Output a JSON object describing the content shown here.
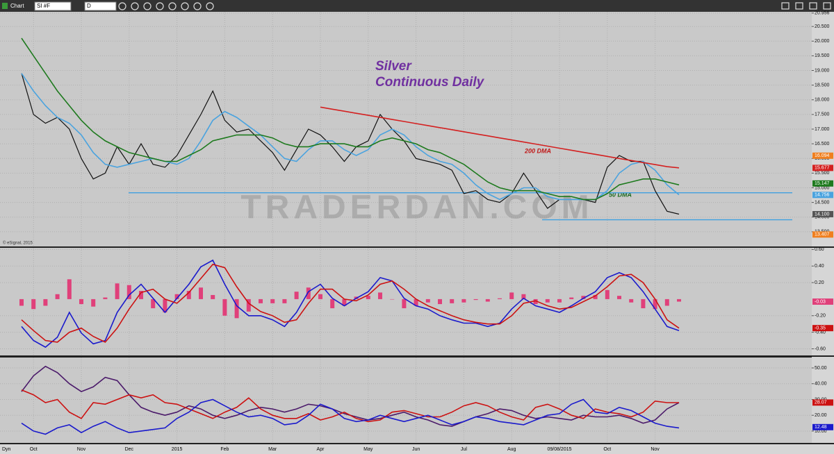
{
  "toolbar": {
    "title": "Chart",
    "symbol": "SI #F",
    "interval": "D"
  },
  "footer_label": "Dyn",
  "annotations": [
    "Silver",
    "Continuous Daily",
    "200 DMA",
    "50 DMA",
    "TRADERDAN.COM",
    "© eSignal, 2015"
  ],
  "chart_data": [
    {
      "type": "line",
      "categories": [
        null,
        "Oct",
        null,
        null,
        null,
        "Nov",
        null,
        null,
        null,
        "Dec",
        null,
        null,
        null,
        "2015",
        null,
        null,
        null,
        "Feb",
        null,
        null,
        null,
        "Mar",
        null,
        null,
        null,
        "Apr",
        null,
        null,
        null,
        "May",
        null,
        null,
        null,
        "Jun",
        null,
        null,
        null,
        "Jul",
        null,
        null,
        null,
        "Aug",
        null,
        null,
        null,
        "09/08/2015",
        null,
        null,
        null,
        "Oct",
        null,
        null,
        null,
        "Nov",
        null,
        null
      ],
      "ylim": [
        13.0,
        21.0
      ],
      "yticks": [
        {
          "value": 20.956,
          "label": "20.956"
        },
        {
          "value": 20.5,
          "label": "20.500"
        },
        {
          "value": 20,
          "label": "20.000"
        },
        {
          "value": 19.5,
          "label": "19.500"
        },
        {
          "value": 19,
          "label": "19.000"
        },
        {
          "value": 18.5,
          "label": "18.500"
        },
        {
          "value": 18,
          "label": "18.000"
        },
        {
          "value": 17.5,
          "label": "17.500"
        },
        {
          "value": 17,
          "label": "17.000"
        },
        {
          "value": 16.5,
          "label": "16.500"
        },
        {
          "value": 16,
          "label": "16.000"
        },
        {
          "value": 15.5,
          "label": "15.500"
        },
        {
          "value": 15,
          "label": "15.000"
        },
        {
          "value": 14.5,
          "label": "14.500"
        },
        {
          "value": 14,
          "label": "14.000"
        },
        {
          "value": 13.5,
          "label": "13.500"
        }
      ],
      "grid": true,
      "series": [
        {
          "color": "#111111",
          "values": [
            18.9,
            17.5,
            17.2,
            17.4,
            17.0,
            16.0,
            15.3,
            15.5,
            16.4,
            15.8,
            16.5,
            15.8,
            15.7,
            16.1,
            16.8,
            17.5,
            18.3,
            17.3,
            16.9,
            17.0,
            16.6,
            16.2,
            15.6,
            16.3,
            17.0,
            16.8,
            16.4,
            15.9,
            16.4,
            16.6,
            17.5,
            17.0,
            16.6,
            16.0,
            15.9,
            15.8,
            15.6,
            14.8,
            14.9,
            14.6,
            14.5,
            14.8,
            15.5,
            14.9,
            14.3,
            14.6,
            14.6,
            14.6,
            14.5,
            15.7,
            16.1,
            15.9,
            15.9,
            14.9,
            14.2,
            14.1
          ]
        },
        {
          "color": "#4aa3df",
          "values": [
            18.9,
            18.3,
            17.8,
            17.4,
            17.2,
            16.8,
            16.2,
            15.8,
            15.7,
            15.8,
            15.9,
            16.0,
            15.9,
            15.8,
            16.0,
            16.6,
            17.3,
            17.6,
            17.4,
            17.1,
            16.8,
            16.4,
            16.0,
            15.9,
            16.3,
            16.6,
            16.6,
            16.3,
            16.1,
            16.3,
            16.8,
            17.0,
            16.8,
            16.4,
            16.1,
            15.9,
            15.8,
            15.5,
            15.1,
            14.8,
            14.6,
            14.8,
            15.0,
            15.0,
            14.7,
            14.6,
            14.6,
            14.6,
            14.6,
            14.9,
            15.5,
            15.8,
            15.9,
            15.6,
            15.1,
            14.76
          ]
        },
        {
          "color": "#1e7a1e",
          "values": [
            20.1,
            19.5,
            18.9,
            18.3,
            17.8,
            17.3,
            16.9,
            16.6,
            16.4,
            16.2,
            16.1,
            16.0,
            15.9,
            15.9,
            16.1,
            16.3,
            16.6,
            16.7,
            16.8,
            16.8,
            16.8,
            16.7,
            16.5,
            16.4,
            16.4,
            16.5,
            16.5,
            16.5,
            16.4,
            16.4,
            16.6,
            16.7,
            16.6,
            16.5,
            16.3,
            16.2,
            16.0,
            15.8,
            15.5,
            15.2,
            15.0,
            14.9,
            14.9,
            14.9,
            14.8,
            14.7,
            14.7,
            14.6,
            14.6,
            14.8,
            15.1,
            15.2,
            15.3,
            15.3,
            15.2,
            15.1
          ]
        },
        {
          "color": "#d42020",
          "values": [
            null,
            null,
            null,
            null,
            null,
            null,
            null,
            null,
            null,
            null,
            null,
            null,
            null,
            null,
            null,
            null,
            null,
            null,
            null,
            null,
            null,
            null,
            null,
            null,
            null,
            17.75,
            17.68,
            17.61,
            17.54,
            17.47,
            17.4,
            17.33,
            17.26,
            17.19,
            17.12,
            17.05,
            16.98,
            16.91,
            16.84,
            16.77,
            16.7,
            16.63,
            16.56,
            16.49,
            16.42,
            16.35,
            16.28,
            16.21,
            16.14,
            16.07,
            16.0,
            15.93,
            15.86,
            15.79,
            15.72,
            15.68
          ]
        }
      ],
      "levels": [
        {
          "value": 14.83,
          "color": "#3fa0e0"
        },
        {
          "value": 13.91,
          "color": "#3fa0e0"
        }
      ],
      "last_labels": [
        {
          "value": 16.094,
          "label": "16.094",
          "color": "#f07f1e"
        },
        {
          "value": 15.677,
          "label": "15.677",
          "color": "#d42020"
        },
        {
          "value": 15.147,
          "label": "15.147",
          "color": "#1e7a1e"
        },
        {
          "value": 14.756,
          "label": "14.756",
          "color": "#4aa3df"
        },
        {
          "value": 14.1,
          "label": "14.100",
          "color": "#555555"
        },
        {
          "value": 13.407,
          "label": "13.407",
          "color": "#f07f1e"
        }
      ]
    },
    {
      "type": "line",
      "ylim": [
        -0.68,
        0.62
      ],
      "yticks": [
        {
          "value": 0.6,
          "label": "0.60"
        },
        {
          "value": 0.4,
          "label": "0.40"
        },
        {
          "value": 0.2,
          "label": "0.20"
        },
        {
          "value": -0.2,
          "label": "-0.20"
        },
        {
          "value": -0.4,
          "label": "-0.40"
        },
        {
          "value": -0.6,
          "label": "-0.60"
        }
      ],
      "grid": true,
      "series": [
        {
          "kind": "bar",
          "color": "#e0407a",
          "values": [
            -0.08,
            -0.12,
            -0.08,
            0.06,
            0.24,
            -0.06,
            -0.09,
            0.02,
            0.19,
            0.17,
            0.1,
            -0.11,
            -0.16,
            0.06,
            0.1,
            0.14,
            0.05,
            -0.2,
            -0.23,
            -0.15,
            -0.05,
            -0.05,
            -0.05,
            0.09,
            0.14,
            0.06,
            -0.11,
            -0.08,
            0.03,
            0.04,
            0.08,
            0,
            -0.11,
            -0.08,
            -0.04,
            -0.06,
            -0.05,
            -0.04,
            -0.01,
            -0.03,
            0.01,
            0.08,
            0.06,
            -0.06,
            -0.04,
            -0.04,
            0.02,
            0.04,
            0.05,
            0.11,
            0.04,
            -0.04,
            -0.11,
            -0.12,
            -0.08,
            -0.03
          ]
        },
        {
          "color": "#1a1acc",
          "values": [
            -0.33,
            -0.5,
            -0.58,
            -0.46,
            -0.16,
            -0.41,
            -0.54,
            -0.5,
            -0.16,
            0.05,
            0.18,
            0.01,
            -0.16,
            0.01,
            0.18,
            0.39,
            0.47,
            0.18,
            -0.08,
            -0.2,
            -0.2,
            -0.25,
            -0.33,
            -0.16,
            0.09,
            0.18,
            0.01,
            -0.08,
            0.01,
            0.09,
            0.26,
            0.22,
            0.01,
            -0.08,
            -0.12,
            -0.2,
            -0.25,
            -0.29,
            -0.29,
            -0.33,
            -0.29,
            -0.12,
            0.01,
            -0.08,
            -0.12,
            -0.16,
            -0.08,
            0.01,
            0.09,
            0.26,
            0.32,
            0.26,
            0.09,
            -0.12,
            -0.33,
            -0.38
          ]
        },
        {
          "color": "#cc1111",
          "values": [
            -0.25,
            -0.38,
            -0.5,
            -0.52,
            -0.4,
            -0.35,
            -0.45,
            -0.52,
            -0.35,
            -0.12,
            0.08,
            0.12,
            0.0,
            -0.05,
            0.08,
            0.25,
            0.42,
            0.38,
            0.15,
            -0.05,
            -0.15,
            -0.2,
            -0.28,
            -0.25,
            -0.05,
            0.12,
            0.12,
            0.0,
            -0.02,
            0.05,
            0.18,
            0.22,
            0.12,
            0.0,
            -0.08,
            -0.14,
            -0.2,
            -0.25,
            -0.28,
            -0.3,
            -0.3,
            -0.2,
            -0.05,
            -0.02,
            -0.08,
            -0.12,
            -0.1,
            -0.03,
            0.04,
            0.15,
            0.28,
            0.3,
            0.2,
            0.0,
            -0.25,
            -0.35
          ]
        }
      ],
      "last_labels": [
        {
          "value": -0.03,
          "label": "-0.03",
          "color": "#e0407a"
        },
        {
          "value": -0.35,
          "label": "-0.35",
          "color": "#cc1111"
        }
      ]
    },
    {
      "type": "line",
      "ylim": [
        2.5,
        56.6
      ],
      "yticks": [
        {
          "value": 50,
          "label": "50.00"
        },
        {
          "value": 40,
          "label": "40.00"
        },
        {
          "value": 30,
          "label": "30.00"
        },
        {
          "value": 20,
          "label": "20.00"
        },
        {
          "value": 10,
          "label": "10.00"
        }
      ],
      "grid": true,
      "series": [
        {
          "color": "#4b1a6a",
          "values": [
            35,
            45,
            51,
            47,
            40,
            35,
            38,
            44,
            42,
            33,
            25,
            22,
            20,
            22,
            26,
            24,
            20,
            18,
            20,
            23,
            25,
            24,
            22,
            24,
            27,
            26,
            24,
            21,
            19,
            17,
            18,
            20,
            22,
            19,
            17,
            14,
            13,
            16,
            19,
            21,
            24,
            23,
            20,
            18,
            19,
            18,
            17,
            20,
            19,
            19,
            20,
            18,
            15,
            17,
            24,
            28
          ]
        },
        {
          "color": "#cc1111",
          "values": [
            36,
            33,
            28,
            30,
            22,
            18,
            28,
            27,
            30,
            33,
            31,
            33,
            28,
            27,
            24,
            21,
            18,
            22,
            25,
            31,
            24,
            20,
            18,
            18,
            21,
            17,
            19,
            22,
            18,
            16,
            17,
            22,
            23,
            21,
            19,
            19,
            22,
            26,
            28,
            26,
            22,
            19,
            17,
            25,
            27,
            24,
            20,
            18,
            24,
            22,
            21,
            19,
            22,
            29,
            28,
            28
          ]
        },
        {
          "color": "#1a1acc",
          "values": [
            15,
            10,
            8,
            12,
            14,
            9,
            13,
            16,
            12,
            9,
            10,
            11,
            12,
            18,
            22,
            28,
            30,
            26,
            22,
            19,
            20,
            18,
            14,
            15,
            20,
            27,
            24,
            18,
            16,
            17,
            20,
            18,
            16,
            18,
            20,
            17,
            14,
            16,
            19,
            18,
            16,
            15,
            14,
            17,
            20,
            21,
            27,
            30,
            22,
            21,
            25,
            23,
            19,
            15,
            13,
            12
          ]
        }
      ],
      "last_labels": [
        {
          "value": 28.07,
          "label": "28.07",
          "color": "#cc1111"
        },
        {
          "value": 12.48,
          "label": "12.48",
          "color": "#1a1acc"
        }
      ]
    }
  ]
}
